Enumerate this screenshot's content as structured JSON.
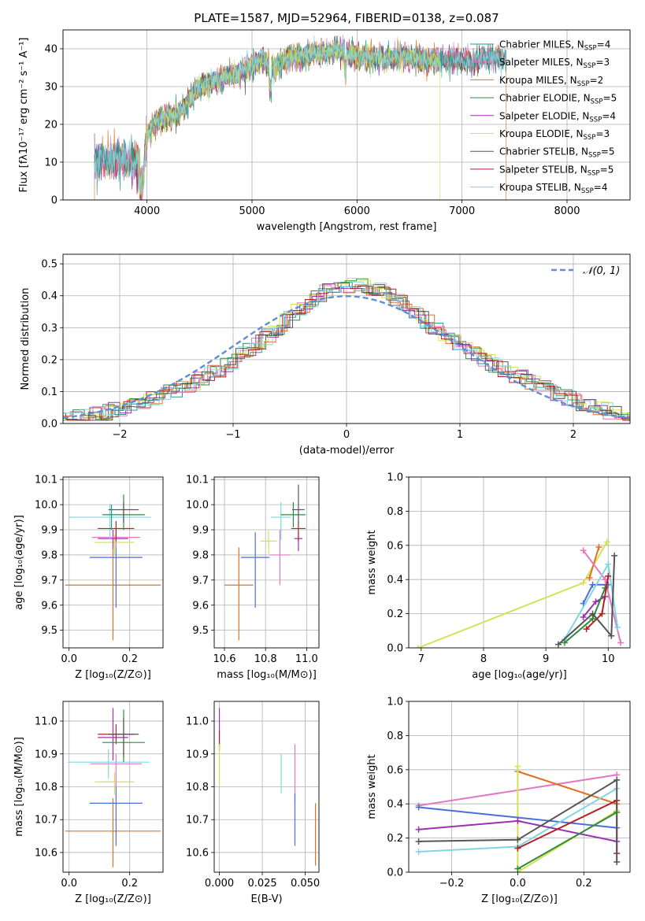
{
  "title": "PLATE=1587, MJD=52964, FIBERID=0138, z=0.087",
  "legend_items": [
    {
      "label": "Chabrier MILES, N",
      "sub": "SSP",
      "suffix": "=4",
      "color": "#1f9e89"
    },
    {
      "label": "Salpeter MILES, N",
      "sub": "SSP",
      "suffix": "=3",
      "color": "#e377c2"
    },
    {
      "label": "Kroupa MILES, N",
      "sub": "SSP",
      "suffix": "=2",
      "color": "#e07020"
    },
    {
      "label": "Chabrier ELODIE, N",
      "sub": "SSP",
      "suffix": "=5",
      "color": "#2e8b3e"
    },
    {
      "label": "Salpeter ELODIE, N",
      "sub": "SSP",
      "suffix": "=4",
      "color": "#9b30b0"
    },
    {
      "label": "Kroupa ELODIE, N",
      "sub": "SSP",
      "suffix": "=3",
      "color": "#d4e157"
    },
    {
      "label": "Chabrier STELIB, N",
      "sub": "SSP",
      "suffix": "=5",
      "color": "#555555"
    },
    {
      "label": "Salpeter STELIB, N",
      "sub": "SSP",
      "suffix": "=5",
      "color": "#b22222"
    },
    {
      "label": "Kroupa STELIB, N",
      "sub": "SSP",
      "suffix": "=4",
      "color": "#7fd6e0"
    }
  ],
  "axes_text": {
    "spec_xlabel": "wavelength [Angstrom, rest frame]",
    "spec_ylabel": "Flux [fλ10⁻¹⁷ erg cm⁻² s⁻¹ A⁻¹]",
    "hist_xlabel": "(data-model)/error",
    "hist_ylabel": "Normed distribution",
    "hist_legend": "𝒩(0, 1)",
    "age_ylabel": "age  [log₁₀(age/yr)]",
    "mass_ylabel": "mass [log₁₀(M/M⊙)]",
    "z_xlabel": "Z [log₁₀(Z/Z⊙)]",
    "mass_xlabel": "mass [log₁₀(M/M⊙)]",
    "ebv_xlabel": "E(B-V)",
    "age_xlabel": "age  [log₁₀(age/yr)]",
    "mw_ylabel": "mass weight"
  },
  "chart_data": [
    {
      "id": "spectrum",
      "type": "line",
      "xlim": [
        3200,
        8600
      ],
      "ylim": [
        0,
        45
      ],
      "xticks": [
        4000,
        5000,
        6000,
        7000,
        8000
      ],
      "yticks": [
        0,
        10,
        20,
        30,
        40
      ],
      "continuum": [
        [
          3500,
          10
        ],
        [
          3700,
          11
        ],
        [
          3900,
          10
        ],
        [
          3960,
          9
        ],
        [
          4000,
          17
        ],
        [
          4100,
          21
        ],
        [
          4200,
          22
        ],
        [
          4300,
          23
        ],
        [
          4400,
          26
        ],
        [
          4500,
          30
        ],
        [
          4600,
          31
        ],
        [
          4700,
          32
        ],
        [
          4800,
          33
        ],
        [
          4900,
          34
        ],
        [
          5000,
          36
        ],
        [
          5100,
          37
        ],
        [
          5200,
          35
        ],
        [
          5300,
          37
        ],
        [
          5400,
          38
        ],
        [
          5500,
          38
        ],
        [
          5600,
          39
        ],
        [
          5700,
          39
        ],
        [
          5800,
          40
        ],
        [
          5900,
          39
        ],
        [
          6000,
          38
        ],
        [
          6100,
          38
        ],
        [
          6200,
          38
        ],
        [
          6300,
          37
        ],
        [
          6400,
          38
        ],
        [
          6500,
          38
        ],
        [
          6600,
          37
        ],
        [
          6700,
          37
        ],
        [
          6800,
          37
        ],
        [
          6900,
          37
        ],
        [
          7000,
          37
        ],
        [
          7100,
          36
        ],
        [
          7200,
          38
        ],
        [
          7300,
          38
        ],
        [
          7400,
          37
        ]
      ],
      "edge_drops": [
        3500,
        3920,
        6790,
        7420
      ]
    },
    {
      "id": "residuals",
      "type": "histogram",
      "xlim": [
        -2.5,
        2.5
      ],
      "ylim": [
        0,
        0.53
      ],
      "xticks": [
        -2,
        -1,
        0,
        1,
        2
      ],
      "yticks": [
        0.0,
        0.1,
        0.2,
        0.3,
        0.4,
        0.5
      ],
      "bin_width": 0.1,
      "overlay": {
        "name": "N(0,1)",
        "mean": 0,
        "sigma": 1
      }
    },
    {
      "id": "z_vs_age",
      "type": "errorbar",
      "xlim": [
        -0.02,
        0.31
      ],
      "ylim": [
        9.43,
        10.11
      ],
      "xticks": [
        0.0,
        0.2
      ],
      "yticks": [
        9.5,
        9.6,
        9.7,
        9.8,
        9.9,
        10.0,
        10.1
      ],
      "points": [
        {
          "x": 0.145,
          "xerr": 0.158,
          "y": 9.68,
          "yerr": [
            0.22,
            0.15
          ],
          "color": "#e07020"
        },
        {
          "x": 0.155,
          "xerr": 0.087,
          "y": 9.79,
          "yerr": [
            0.2,
            0.1
          ],
          "color": "#4b6fd6"
        },
        {
          "x": 0.15,
          "xerr": 0.065,
          "y": 9.85,
          "yerr": [
            0.05,
            0.03
          ],
          "color": "#d4e157"
        },
        {
          "x": 0.145,
          "xerr": 0.05,
          "y": 9.865,
          "yerr": [
            0.04,
            0.035
          ],
          "color": "#9b30b0"
        },
        {
          "x": 0.155,
          "xerr": 0.08,
          "y": 9.87,
          "yerr": [
            0.04,
            0.03
          ],
          "color": "#e377c2"
        },
        {
          "x": 0.135,
          "xerr": 0.135,
          "y": 9.95,
          "yerr": [
            0.09,
            0.055
          ],
          "color": "#7fd6e0"
        },
        {
          "x": 0.155,
          "xerr": 0.06,
          "y": 9.905,
          "yerr": [
            0.05,
            0.03
          ],
          "color": "#b22222"
        },
        {
          "x": 0.18,
          "xerr": 0.07,
          "y": 9.96,
          "yerr": [
            0.06,
            0.08
          ],
          "color": "#2e8b3e"
        },
        {
          "x": 0.18,
          "xerr": 0.05,
          "y": 9.98,
          "yerr": [
            0.05,
            0.03
          ],
          "color": "#555555"
        },
        {
          "x": 0.14,
          "xerr": 0.02,
          "y": 9.96,
          "yerr": [
            0.06,
            0.04
          ],
          "color": "#1f9e89"
        }
      ]
    },
    {
      "id": "mass_vs_age",
      "type": "errorbar",
      "xlim": [
        10.55,
        11.06
      ],
      "ylim": [
        9.43,
        10.11
      ],
      "xticks": [
        10.6,
        10.8,
        11.0
      ],
      "yticks": [
        9.5,
        9.6,
        9.7,
        9.8,
        9.9,
        10.0,
        10.1
      ],
      "points": [
        {
          "x": 10.67,
          "xerr": 0.07,
          "y": 9.68,
          "yerr": [
            0.22,
            0.15
          ],
          "color": "#e07020"
        },
        {
          "x": 10.75,
          "xerr": 0.07,
          "y": 9.79,
          "yerr": [
            0.2,
            0.1
          ],
          "color": "#4b6fd6"
        },
        {
          "x": 10.815,
          "xerr": 0.04,
          "y": 9.855,
          "yerr": [
            0.05,
            0.04
          ],
          "color": "#d4e157"
        },
        {
          "x": 10.87,
          "xerr": 0.05,
          "y": 9.8,
          "yerr": [
            0.12,
            0.1
          ],
          "color": "#e377c2"
        },
        {
          "x": 10.875,
          "xerr": 0.05,
          "y": 9.95,
          "yerr": [
            0.09,
            0.06
          ],
          "color": "#7fd6e0"
        },
        {
          "x": 10.96,
          "xerr": 0.02,
          "y": 9.865,
          "yerr": [
            0.05,
            0.03
          ],
          "color": "#9b30b0"
        },
        {
          "x": 10.96,
          "xerr": 0.035,
          "y": 9.905,
          "yerr": [
            0.05,
            0.03
          ],
          "color": "#b22222"
        },
        {
          "x": 10.935,
          "xerr": 0.06,
          "y": 9.96,
          "yerr": [
            0.05,
            0.05
          ],
          "color": "#2e8b3e"
        },
        {
          "x": 10.96,
          "xerr": 0.03,
          "y": 9.98,
          "yerr": [
            0.06,
            0.1
          ],
          "color": "#555555"
        }
      ]
    },
    {
      "id": "age_vs_massweight",
      "type": "line",
      "xlim": [
        6.8,
        10.35
      ],
      "ylim": [
        0,
        1
      ],
      "xticks": [
        7,
        8,
        9,
        10
      ],
      "yticks": [
        0.0,
        0.2,
        0.4,
        0.6,
        0.8,
        1.0
      ],
      "series": [
        {
          "color": "#d4e157",
          "x": [
            6.95,
            9.6,
            9.98
          ],
          "y": [
            0.0,
            0.38,
            0.62
          ]
        },
        {
          "color": "#e07020",
          "x": [
            9.7,
            9.85
          ],
          "y": [
            0.41,
            0.59
          ]
        },
        {
          "color": "#e377c2",
          "x": [
            9.6,
            9.95,
            10.2
          ],
          "y": [
            0.57,
            0.4,
            0.03
          ]
        },
        {
          "color": "#4b6fd6",
          "x": [
            9.6,
            9.75,
            10.0
          ],
          "y": [
            0.26,
            0.37,
            0.37
          ]
        },
        {
          "color": "#7fd6e0",
          "x": [
            9.3,
            10.0,
            10.15
          ],
          "y": [
            0.05,
            0.49,
            0.12
          ]
        },
        {
          "color": "#9b30b0",
          "x": [
            9.6,
            9.8,
            9.95
          ],
          "y": [
            0.18,
            0.27,
            0.3
          ]
        },
        {
          "color": "#2e8b3e",
          "x": [
            9.3,
            9.75,
            9.95
          ],
          "y": [
            0.03,
            0.17,
            0.35
          ]
        },
        {
          "color": "#b22222",
          "x": [
            9.65,
            9.9,
            10.0
          ],
          "y": [
            0.11,
            0.2,
            0.42
          ]
        },
        {
          "color": "#555555",
          "x": [
            9.2,
            9.75,
            10.05,
            10.1
          ],
          "y": [
            0.02,
            0.2,
            0.07,
            0.54
          ]
        }
      ]
    },
    {
      "id": "z_vs_mass",
      "type": "errorbar",
      "xlim": [
        -0.02,
        0.31
      ],
      "ylim": [
        10.54,
        11.06
      ],
      "xticks": [
        0.0,
        0.2
      ],
      "yticks": [
        10.6,
        10.7,
        10.8,
        10.9,
        11.0
      ],
      "points": [
        {
          "x": 0.145,
          "xerr": 0.158,
          "y": 10.665,
          "yerr": [
            0.11,
            0.1
          ],
          "color": "#e07020"
        },
        {
          "x": 0.155,
          "xerr": 0.087,
          "y": 10.75,
          "yerr": [
            0.13,
            0.06
          ],
          "color": "#4b6fd6"
        },
        {
          "x": 0.15,
          "xerr": 0.065,
          "y": 10.815,
          "yerr": [
            0.04,
            0.03
          ],
          "color": "#d4e157"
        },
        {
          "x": 0.155,
          "xerr": 0.085,
          "y": 10.87,
          "yerr": [
            0.07,
            0.03
          ],
          "color": "#e377c2"
        },
        {
          "x": 0.13,
          "xerr": 0.135,
          "y": 10.875,
          "yerr": [
            0.05,
            0.04
          ],
          "color": "#7fd6e0"
        },
        {
          "x": 0.145,
          "xerr": 0.05,
          "y": 10.95,
          "yerr": [
            0.07,
            0.09
          ],
          "color": "#9b30b0"
        },
        {
          "x": 0.155,
          "xerr": 0.06,
          "y": 10.96,
          "yerr": [
            0.03,
            0.03
          ],
          "color": "#b22222"
        },
        {
          "x": 0.18,
          "xerr": 0.07,
          "y": 10.935,
          "yerr": [
            0.06,
            0.1
          ],
          "color": "#2e8b3e"
        },
        {
          "x": 0.18,
          "xerr": 0.05,
          "y": 10.96,
          "yerr": [
            0.07,
            0.05
          ],
          "color": "#555555"
        }
      ]
    },
    {
      "id": "ebv_vs_mass",
      "type": "errorbar",
      "xlim": [
        -0.003,
        0.058
      ],
      "ylim": [
        10.54,
        11.06
      ],
      "xticks": [
        0.0,
        0.025,
        0.05
      ],
      "yticks": [
        10.6,
        10.7,
        10.8,
        10.9,
        11.0
      ],
      "points": [
        {
          "x": 0.0,
          "y": 10.96,
          "yerr": [
            0.04,
            0.08
          ],
          "color": "#9b30b0"
        },
        {
          "x": 0.0,
          "y": 10.94,
          "yerr": [
            0.03,
            0.03
          ],
          "color": "#b22222"
        },
        {
          "x": 0.0,
          "y": 10.88,
          "yerr": [
            0.08,
            0.05
          ],
          "color": "#d4e157"
        },
        {
          "x": 0.036,
          "y": 10.84,
          "yerr": [
            0.06,
            0.06
          ],
          "color": "#7fd6e0"
        },
        {
          "x": 0.044,
          "y": 10.84,
          "yerr": [
            0.09,
            0.09
          ],
          "color": "#e377c2"
        },
        {
          "x": 0.044,
          "y": 10.72,
          "yerr": [
            0.1,
            0.06
          ],
          "color": "#4b6fd6"
        },
        {
          "x": 0.056,
          "y": 10.66,
          "yerr": [
            0.1,
            0.09
          ],
          "color": "#e07020"
        }
      ]
    },
    {
      "id": "z_vs_massweight",
      "type": "line",
      "xlim": [
        -0.33,
        0.34
      ],
      "ylim": [
        0,
        1
      ],
      "xticks": [
        -0.2,
        0.0,
        0.2
      ],
      "yticks": [
        0.0,
        0.2,
        0.4,
        0.6,
        0.8,
        1.0
      ],
      "series": [
        {
          "color": "#e377c2",
          "x": [
            -0.3,
            0.3
          ],
          "y": [
            0.39,
            0.57
          ]
        },
        {
          "color": "#e07020",
          "x": [
            0.0,
            0.3
          ],
          "y": [
            0.59,
            0.4
          ]
        },
        {
          "color": "#d4e157",
          "x": [
            0.0,
            0.0,
            0.3
          ],
          "y": [
            0.62,
            0.0,
            0.36
          ]
        },
        {
          "color": "#4b6fd6",
          "x": [
            -0.3,
            0.3
          ],
          "y": [
            0.38,
            0.26
          ]
        },
        {
          "color": "#7fd6e0",
          "x": [
            -0.3,
            0.0,
            0.3
          ],
          "y": [
            0.12,
            0.15,
            0.49
          ]
        },
        {
          "color": "#9b30b0",
          "x": [
            -0.3,
            0.0,
            0.3
          ],
          "y": [
            0.25,
            0.3,
            0.18
          ]
        },
        {
          "color": "#b22222",
          "x": [
            0.0,
            0.3,
            0.3
          ],
          "y": [
            0.14,
            0.42,
            0.11
          ]
        },
        {
          "color": "#555555",
          "x": [
            -0.3,
            0.0,
            0.3,
            0.3
          ],
          "y": [
            0.18,
            0.19,
            0.54,
            0.06
          ]
        },
        {
          "color": "#2e8b3e",
          "x": [
            0.0,
            0.3
          ],
          "y": [
            0.02,
            0.35
          ]
        }
      ]
    }
  ]
}
